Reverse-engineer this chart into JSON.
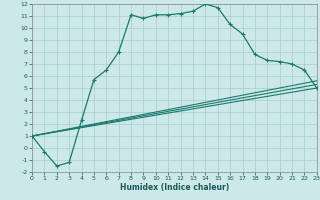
{
  "xlabel": "Humidex (Indice chaleur)",
  "bg_color": "#cce8e8",
  "grid_color": "#aacccc",
  "line_color": "#1a7a6e",
  "xlim": [
    0,
    23
  ],
  "ylim": [
    -2,
    12
  ],
  "xticks": [
    0,
    1,
    2,
    3,
    4,
    5,
    6,
    7,
    8,
    9,
    10,
    11,
    12,
    13,
    14,
    15,
    16,
    17,
    18,
    19,
    20,
    21,
    22,
    23
  ],
  "yticks": [
    -2,
    -1,
    0,
    1,
    2,
    3,
    4,
    5,
    6,
    7,
    8,
    9,
    10,
    11,
    12
  ],
  "series1_x": [
    0,
    1,
    2,
    3,
    4,
    5,
    6,
    7,
    8,
    9,
    10,
    11,
    12,
    13,
    14,
    15,
    16,
    17,
    18,
    19,
    20,
    21,
    22,
    23
  ],
  "series1_y": [
    1.0,
    -0.3,
    -1.5,
    -1.2,
    2.3,
    5.7,
    6.5,
    8.0,
    11.1,
    10.8,
    11.1,
    11.1,
    11.2,
    11.4,
    12.0,
    11.7,
    10.3,
    9.5,
    7.8,
    7.3,
    7.2,
    7.0,
    6.5,
    5.0
  ],
  "series2_x": [
    0,
    23
  ],
  "series2_y": [
    1.0,
    5.0
  ],
  "series3_x": [
    0,
    23
  ],
  "series3_y": [
    1.0,
    5.3
  ],
  "series4_x": [
    0,
    23
  ],
  "series4_y": [
    1.0,
    5.6
  ]
}
